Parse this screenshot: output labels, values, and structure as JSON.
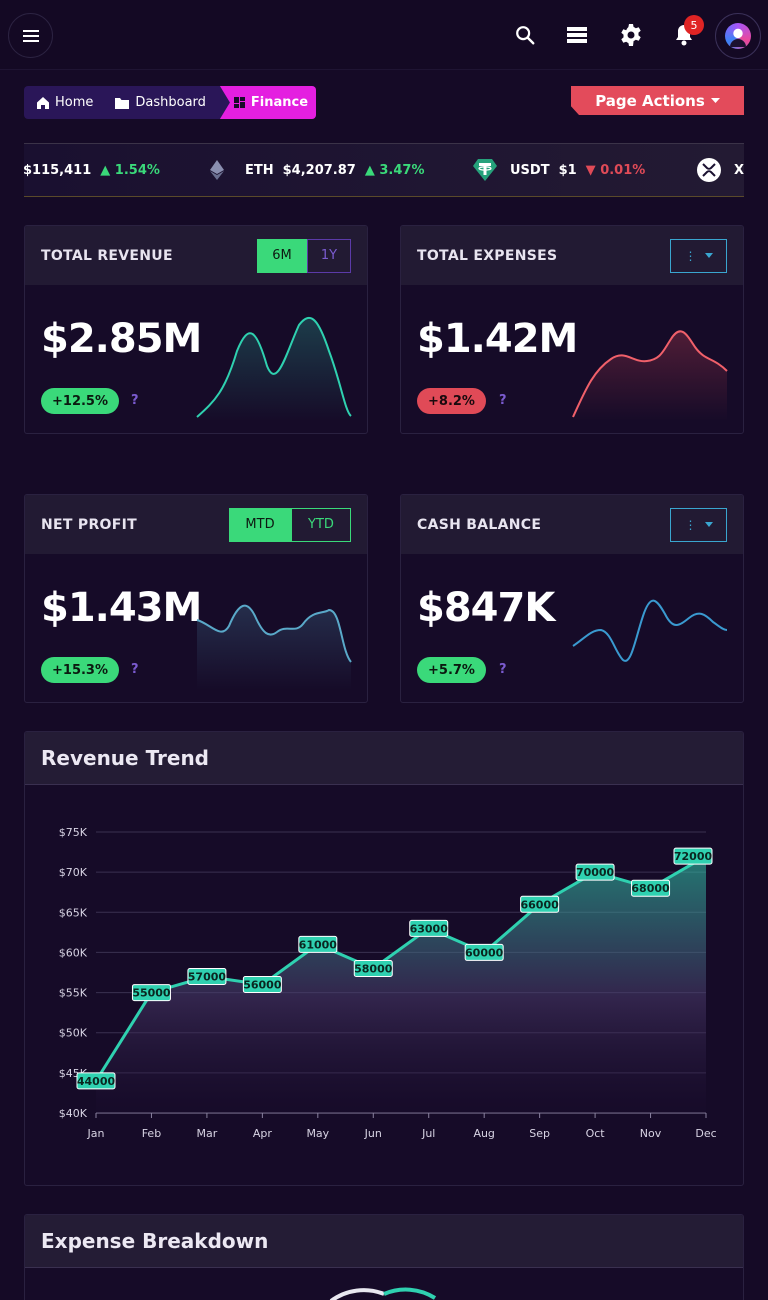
{
  "topbar": {
    "menu_icon": "hamburger-menu-icon",
    "icons": [
      "search-icon",
      "layers-icon",
      "gear-icon",
      "bell-icon"
    ],
    "notification_count": "5"
  },
  "breadcrumb": {
    "home": "Home",
    "dashboard": "Dashboard",
    "finance": "Finance"
  },
  "page_actions": "Page Actions",
  "ticker": [
    {
      "symbol": "",
      "price": "$115,411",
      "change": "1.54%",
      "direction": "up"
    },
    {
      "symbol": "ETH",
      "price": "$4,207.87",
      "change": "3.47%",
      "direction": "up"
    },
    {
      "symbol": "USDT",
      "price": "$1",
      "change": "0.01%",
      "direction": "down"
    },
    {
      "symbol": "X",
      "price": "",
      "change": "",
      "direction": ""
    }
  ],
  "cards": {
    "revenue": {
      "title": "TOTAL REVENUE",
      "value": "$2.85M",
      "change": "+12.5%",
      "toggle": [
        "6M",
        "1Y"
      ],
      "help": "?"
    },
    "expenses": {
      "title": "TOTAL EXPENSES",
      "value": "$1.42M",
      "change": "+8.2%",
      "help": "?"
    },
    "profit": {
      "title": "NET PROFIT",
      "value": "$1.43M",
      "change": "+15.3%",
      "toggle": [
        "MTD",
        "YTD"
      ],
      "help": "?"
    },
    "cash": {
      "title": "CASH BALANCE",
      "value": "$847K",
      "change": "+5.7%",
      "help": "?"
    }
  },
  "colors": {
    "accent_green": "#3ad97a",
    "accent_red": "#e04a57",
    "accent_magenta": "#e41fe0",
    "teal_line": "#2fd1b0"
  },
  "revenue_trend": {
    "title": "Revenue Trend"
  },
  "expense_breakdown": {
    "title": "Expense Breakdown"
  },
  "chart_data": {
    "type": "area",
    "categories": [
      "Jan",
      "Feb",
      "Mar",
      "Apr",
      "May",
      "Jun",
      "Jul",
      "Aug",
      "Sep",
      "Oct",
      "Nov",
      "Dec"
    ],
    "values": [
      44000,
      55000,
      57000,
      56000,
      61000,
      58000,
      63000,
      60000,
      66000,
      70000,
      68000,
      72000
    ],
    "ylim": [
      40000,
      75000
    ],
    "yticks": [
      "$40K",
      "$45K",
      "$50K",
      "$55K",
      "$60K",
      "$65K",
      "$70K",
      "$75K"
    ],
    "grid": true,
    "data_labels": true
  }
}
